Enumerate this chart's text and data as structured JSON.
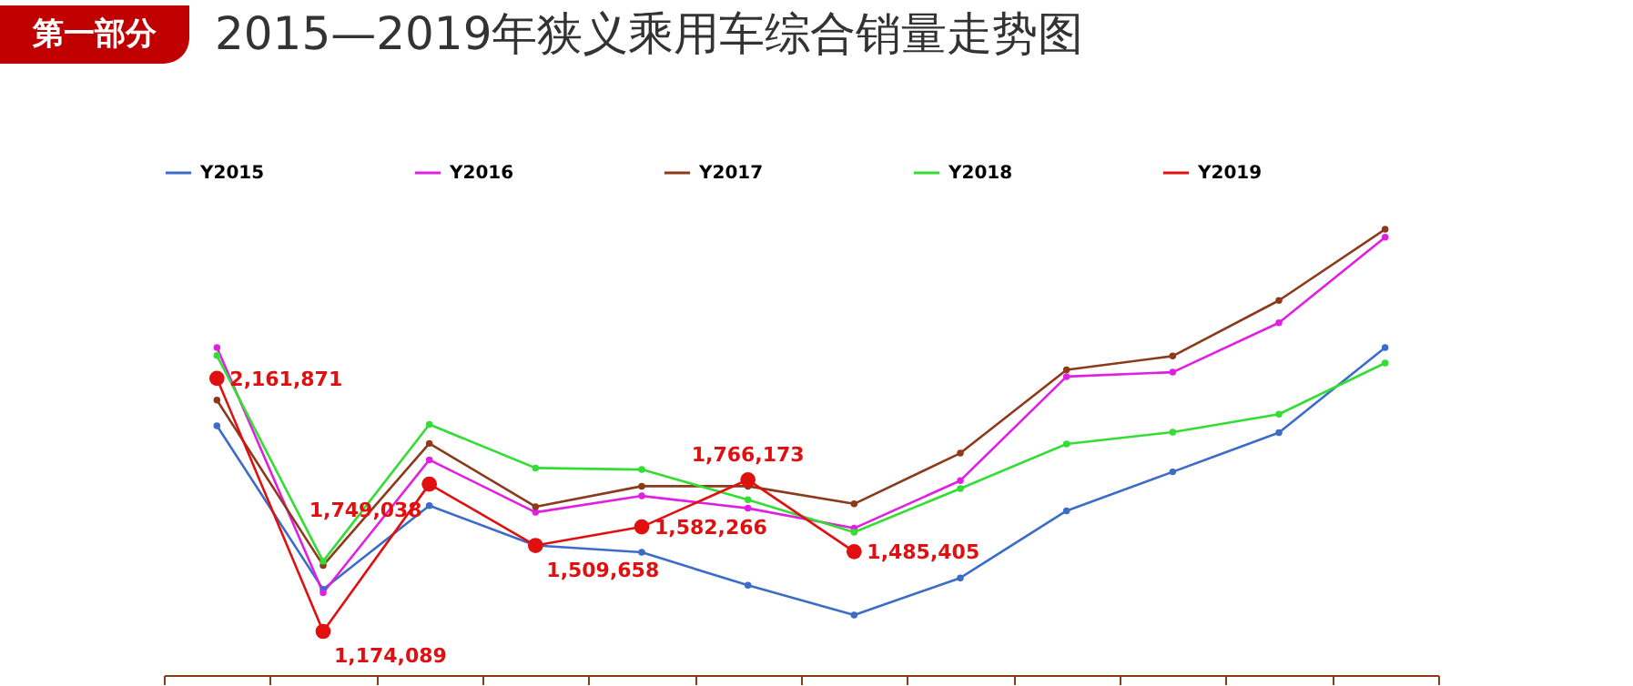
{
  "chart_data": {
    "type": "line",
    "title": "2015—2019年狭义乘用车综合销量走势图",
    "annotations": [
      "第一部分"
    ],
    "categories": [
      null,
      null,
      null,
      null,
      null,
      null,
      null,
      null,
      null,
      null,
      null,
      null
    ],
    "series": [
      {
        "name": "Y2015",
        "color": "#3b6cc8",
        "values": [
          1977000,
          1338000,
          1665000,
          1510000,
          1483000,
          1354000,
          1238000,
          1383000,
          1645000,
          1797000,
          1950000,
          2282000
        ]
      },
      {
        "name": "Y2016",
        "color": "#e020e0",
        "values": [
          2282000,
          1325000,
          1844000,
          1639000,
          1703000,
          1655000,
          1577000,
          1763000,
          2169000,
          2186000,
          2379000,
          2713000
        ]
      },
      {
        "name": "Y2017",
        "color": "#8b3a1a",
        "values": [
          2077000,
          1432000,
          1908000,
          1661000,
          1741000,
          1741000,
          1672000,
          1870000,
          2195000,
          2249000,
          2466000,
          2744000
        ]
      },
      {
        "name": "Y2018",
        "color": "#33dd33",
        "values": [
          2251000,
          1448000,
          1982000,
          1812000,
          1806000,
          1688000,
          1561000,
          1732000,
          1906000,
          1952000,
          2022000,
          2222000
        ]
      },
      {
        "name": "Y2019",
        "color": "#e01010",
        "values": [
          2161871,
          1174089,
          1749038,
          1509658,
          1582266,
          1766173,
          1485405,
          null,
          null,
          null,
          null,
          null
        ],
        "value_labels": [
          "2,161,871",
          "1,174,089",
          "1,749,038",
          "1,509,658",
          "1,582,266",
          "1,766,173",
          "1,485,405",
          null,
          null,
          null,
          null,
          null
        ]
      }
    ],
    "legend": "top",
    "grid": false,
    "marker": "circle",
    "line_style": "solid"
  }
}
